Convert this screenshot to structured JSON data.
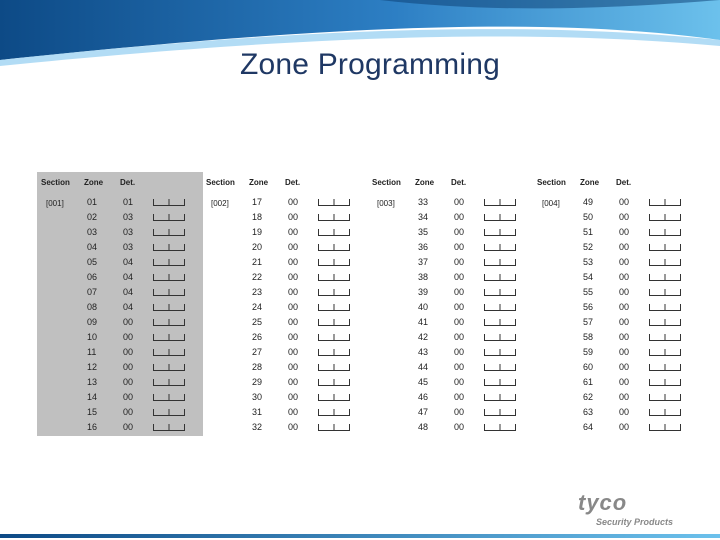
{
  "title": "Zone Programming",
  "headers": {
    "section": "Section",
    "zone": "Zone",
    "def": "Det."
  },
  "tables": [
    {
      "section": "[001]",
      "rows": [
        {
          "zone": "01",
          "def": "01"
        },
        {
          "zone": "02",
          "def": "03"
        },
        {
          "zone": "03",
          "def": "03"
        },
        {
          "zone": "04",
          "def": "03"
        },
        {
          "zone": "05",
          "def": "04"
        },
        {
          "zone": "06",
          "def": "04"
        },
        {
          "zone": "07",
          "def": "04"
        },
        {
          "zone": "08",
          "def": "04"
        },
        {
          "zone": "09",
          "def": "00"
        },
        {
          "zone": "10",
          "def": "00"
        },
        {
          "zone": "11",
          "def": "00"
        },
        {
          "zone": "12",
          "def": "00"
        },
        {
          "zone": "13",
          "def": "00"
        },
        {
          "zone": "14",
          "def": "00"
        },
        {
          "zone": "15",
          "def": "00"
        },
        {
          "zone": "16",
          "def": "00"
        }
      ]
    },
    {
      "section": "[002]",
      "rows": [
        {
          "zone": "17",
          "def": "00"
        },
        {
          "zone": "18",
          "def": "00"
        },
        {
          "zone": "19",
          "def": "00"
        },
        {
          "zone": "20",
          "def": "00"
        },
        {
          "zone": "21",
          "def": "00"
        },
        {
          "zone": "22",
          "def": "00"
        },
        {
          "zone": "23",
          "def": "00"
        },
        {
          "zone": "24",
          "def": "00"
        },
        {
          "zone": "25",
          "def": "00"
        },
        {
          "zone": "26",
          "def": "00"
        },
        {
          "zone": "27",
          "def": "00"
        },
        {
          "zone": "28",
          "def": "00"
        },
        {
          "zone": "29",
          "def": "00"
        },
        {
          "zone": "30",
          "def": "00"
        },
        {
          "zone": "31",
          "def": "00"
        },
        {
          "zone": "32",
          "def": "00"
        }
      ]
    },
    {
      "section": "[003]",
      "rows": [
        {
          "zone": "33",
          "def": "00"
        },
        {
          "zone": "34",
          "def": "00"
        },
        {
          "zone": "35",
          "def": "00"
        },
        {
          "zone": "36",
          "def": "00"
        },
        {
          "zone": "37",
          "def": "00"
        },
        {
          "zone": "38",
          "def": "00"
        },
        {
          "zone": "39",
          "def": "00"
        },
        {
          "zone": "40",
          "def": "00"
        },
        {
          "zone": "41",
          "def": "00"
        },
        {
          "zone": "42",
          "def": "00"
        },
        {
          "zone": "43",
          "def": "00"
        },
        {
          "zone": "44",
          "def": "00"
        },
        {
          "zone": "45",
          "def": "00"
        },
        {
          "zone": "46",
          "def": "00"
        },
        {
          "zone": "47",
          "def": "00"
        },
        {
          "zone": "48",
          "def": "00"
        }
      ]
    },
    {
      "section": "[004]",
      "rows": [
        {
          "zone": "49",
          "def": "00"
        },
        {
          "zone": "50",
          "def": "00"
        },
        {
          "zone": "51",
          "def": "00"
        },
        {
          "zone": "52",
          "def": "00"
        },
        {
          "zone": "53",
          "def": "00"
        },
        {
          "zone": "54",
          "def": "00"
        },
        {
          "zone": "55",
          "def": "00"
        },
        {
          "zone": "56",
          "def": "00"
        },
        {
          "zone": "57",
          "def": "00"
        },
        {
          "zone": "58",
          "def": "00"
        },
        {
          "zone": "59",
          "def": "00"
        },
        {
          "zone": "60",
          "def": "00"
        },
        {
          "zone": "61",
          "def": "00"
        },
        {
          "zone": "62",
          "def": "00"
        },
        {
          "zone": "63",
          "def": "00"
        },
        {
          "zone": "64",
          "def": "00"
        }
      ]
    }
  ],
  "logo": {
    "name": "tyco",
    "sub": "Security Products"
  },
  "colors": {
    "banner_dark": "#0d4a86",
    "banner_light": "#4aa3df",
    "title": "#1f3864",
    "shade": "#c0c0c0"
  }
}
